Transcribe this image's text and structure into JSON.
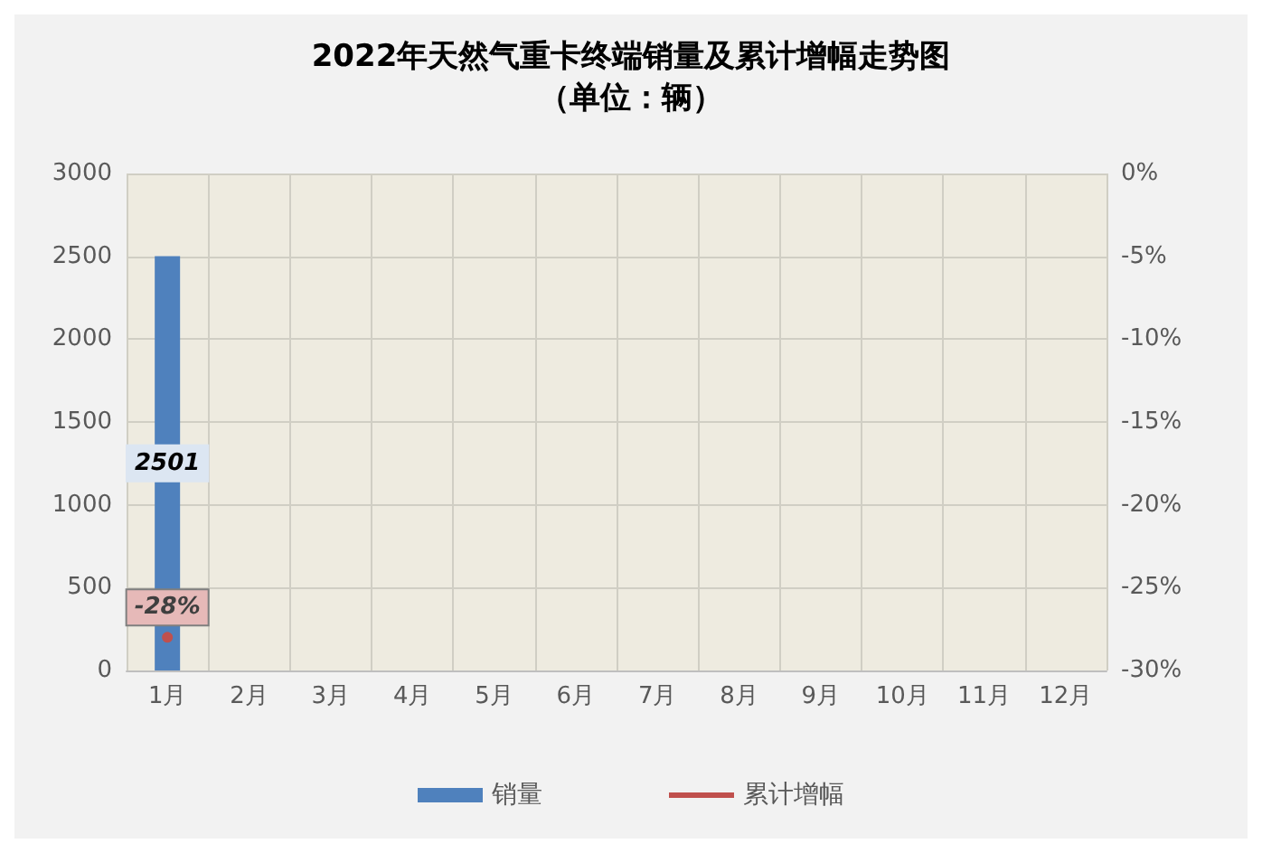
{
  "chart_data": {
    "type": "bar",
    "title": "2022年天然气重卡终端销量及累计增幅走势图",
    "subtitle": "（单位：辆）",
    "categories": [
      "1月",
      "2月",
      "3月",
      "4月",
      "5月",
      "6月",
      "7月",
      "8月",
      "9月",
      "10月",
      "11月",
      "12月"
    ],
    "series": [
      {
        "name": "销量",
        "color": "#4f81bd",
        "values": [
          2501,
          null,
          null,
          null,
          null,
          null,
          null,
          null,
          null,
          null,
          null,
          null
        ],
        "value_labels": [
          "2501",
          null,
          null,
          null,
          null,
          null,
          null,
          null,
          null,
          null,
          null,
          null
        ]
      },
      {
        "name": "累计增幅",
        "type": "line",
        "axis": "y2",
        "color": "#c0504d",
        "values": [
          -28,
          null,
          null,
          null,
          null,
          null,
          null,
          null,
          null,
          null,
          null,
          null
        ],
        "value_labels": [
          "-28%",
          null,
          null,
          null,
          null,
          null,
          null,
          null,
          null,
          null,
          null,
          null
        ]
      }
    ],
    "ylim": [
      0,
      3000
    ],
    "yticks": [
      0,
      500,
      1000,
      1500,
      2000,
      2500,
      3000
    ],
    "y2lim": [
      -30,
      0
    ],
    "y2ticks": [
      {
        "value": -30,
        "label": "-30%"
      },
      {
        "value": -25,
        "label": "-25%"
      },
      {
        "value": -20,
        "label": "-20%"
      },
      {
        "value": -15,
        "label": "-15%"
      },
      {
        "value": -10,
        "label": "-10%"
      },
      {
        "value": -5,
        "label": "-5%"
      },
      {
        "value": 0,
        "label": "0%"
      }
    ],
    "grid": true,
    "legend": "bottom",
    "marker": "circle"
  }
}
